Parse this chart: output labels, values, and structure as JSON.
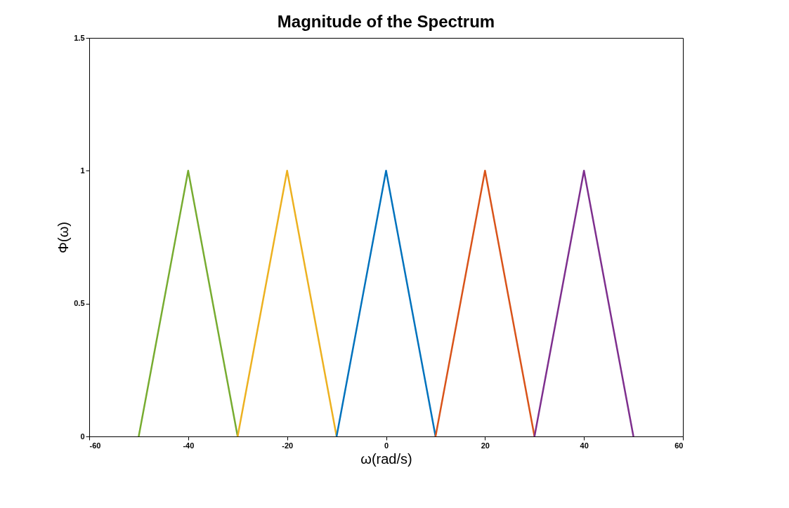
{
  "chart_data": {
    "type": "line",
    "title": "Magnitude of the Spectrum",
    "xlabel": "ω(rad/s)",
    "ylabel": "Φ(ω)",
    "series": [
      {
        "color": "#77ac30",
        "x": [
          -50,
          -40,
          -30
        ],
        "values": [
          0,
          1,
          0
        ]
      },
      {
        "color": "#edb120",
        "x": [
          -30,
          -20,
          -10
        ],
        "values": [
          0,
          1,
          0
        ]
      },
      {
        "color": "#0072bd",
        "x": [
          -10,
          0,
          10
        ],
        "values": [
          0,
          1,
          0
        ]
      },
      {
        "color": "#d95319",
        "x": [
          10,
          20,
          30
        ],
        "values": [
          0,
          1,
          0
        ]
      },
      {
        "color": "#7e2f8e",
        "x": [
          30,
          40,
          50
        ],
        "values": [
          0,
          1,
          0
        ]
      }
    ],
    "xlim": [
      -60,
      60
    ],
    "xticks": [
      -60,
      -40,
      -20,
      0,
      20,
      40,
      60
    ],
    "ylim": [
      0,
      1.5
    ],
    "yticks": [
      0,
      0.5,
      1,
      1.5
    ],
    "grid": false,
    "marker": "none",
    "line_style": "solid"
  }
}
